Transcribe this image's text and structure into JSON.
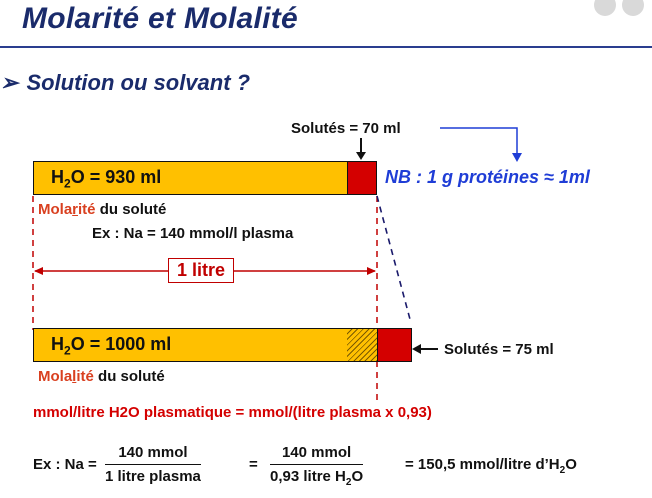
{
  "title": "Molarité et Molalité",
  "heading": {
    "bullet": "➢",
    "text": "Solution ou solvant ?"
  },
  "top_bar": {
    "solutes_label": "Solutés = 70 ml",
    "water_label_prefix": "H",
    "water_label_sub": "2",
    "water_label_suffix": "O = 930 ml",
    "nb_text": "NB : 1 g protéines ≈ 1ml"
  },
  "molarite": {
    "word_pre": "Mola",
    "word_hi": "r",
    "word_post": "ité",
    "rest": " du soluté",
    "example": "Ex : Na = 140 mmol/l plasma",
    "litre": "1 litre"
  },
  "bottom_bar": {
    "water_label_prefix": "H",
    "water_label_sub": "2",
    "water_label_suffix": "O = 1000 ml",
    "solutes_label": "Solutés = 75 ml"
  },
  "molalite": {
    "word_pre": "Mola",
    "word_hi": "l",
    "word_post": "ité",
    "rest": " du soluté"
  },
  "equation_line": "mmol/litre H2O plasmatique = mmol/(litre plasma x 0,93)",
  "formula": {
    "lhs": "Ex : Na =",
    "frac1_num": "140 mmol",
    "frac1_den": "1 litre plasma",
    "eq1": "=",
    "frac2_num": "140 mmol",
    "frac2_den_prefix": "0,93 litre H",
    "frac2_den_sub": "2",
    "frac2_den_suffix": "O",
    "result_prefix": "= 150,5 mmol/litre d’H",
    "result_sub": "2",
    "result_suffix": "O"
  },
  "colors": {
    "title": "#1a2b6b",
    "water": "#ffc000",
    "solutes": "#d40000",
    "accent_red": "#d94020",
    "nb_blue": "#1f3dd6",
    "guide_red": "#c00000",
    "guide_navy": "#1a1a6b"
  }
}
